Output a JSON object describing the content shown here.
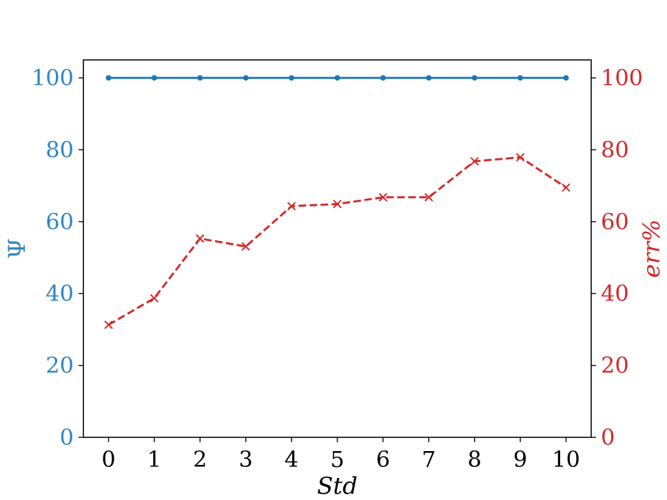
{
  "chart_data": {
    "type": "line",
    "title": "",
    "xlabel": "Std",
    "ylabel_left": "Ψ",
    "ylabel_right": "err%",
    "x": [
      0,
      1,
      2,
      3,
      4,
      5,
      6,
      7,
      8,
      9,
      10
    ],
    "xlim": [
      -0.55,
      10.55
    ],
    "ylim_left": [
      0,
      105
    ],
    "ylim_right": [
      0,
      105
    ],
    "yticks": [
      0,
      20,
      40,
      60,
      80,
      100
    ],
    "grid": false,
    "legend": "none",
    "series": [
      {
        "axis": "left",
        "color": "#1f77b4",
        "linestyle": "solid",
        "marker": "dot",
        "values": [
          100,
          100,
          100,
          100,
          100,
          100,
          100,
          100,
          100,
          100,
          100
        ]
      },
      {
        "axis": "right",
        "color": "#d62728",
        "linestyle": "dashed",
        "marker": "x",
        "values": [
          31.3,
          38.7,
          55.3,
          53.1,
          64.3,
          64.9,
          66.8,
          66.8,
          76.8,
          77.9,
          69.5
        ]
      }
    ],
    "colors": {
      "left_axis": "#2e86c1",
      "right_axis": "#d62728",
      "frame": "#000000"
    }
  }
}
